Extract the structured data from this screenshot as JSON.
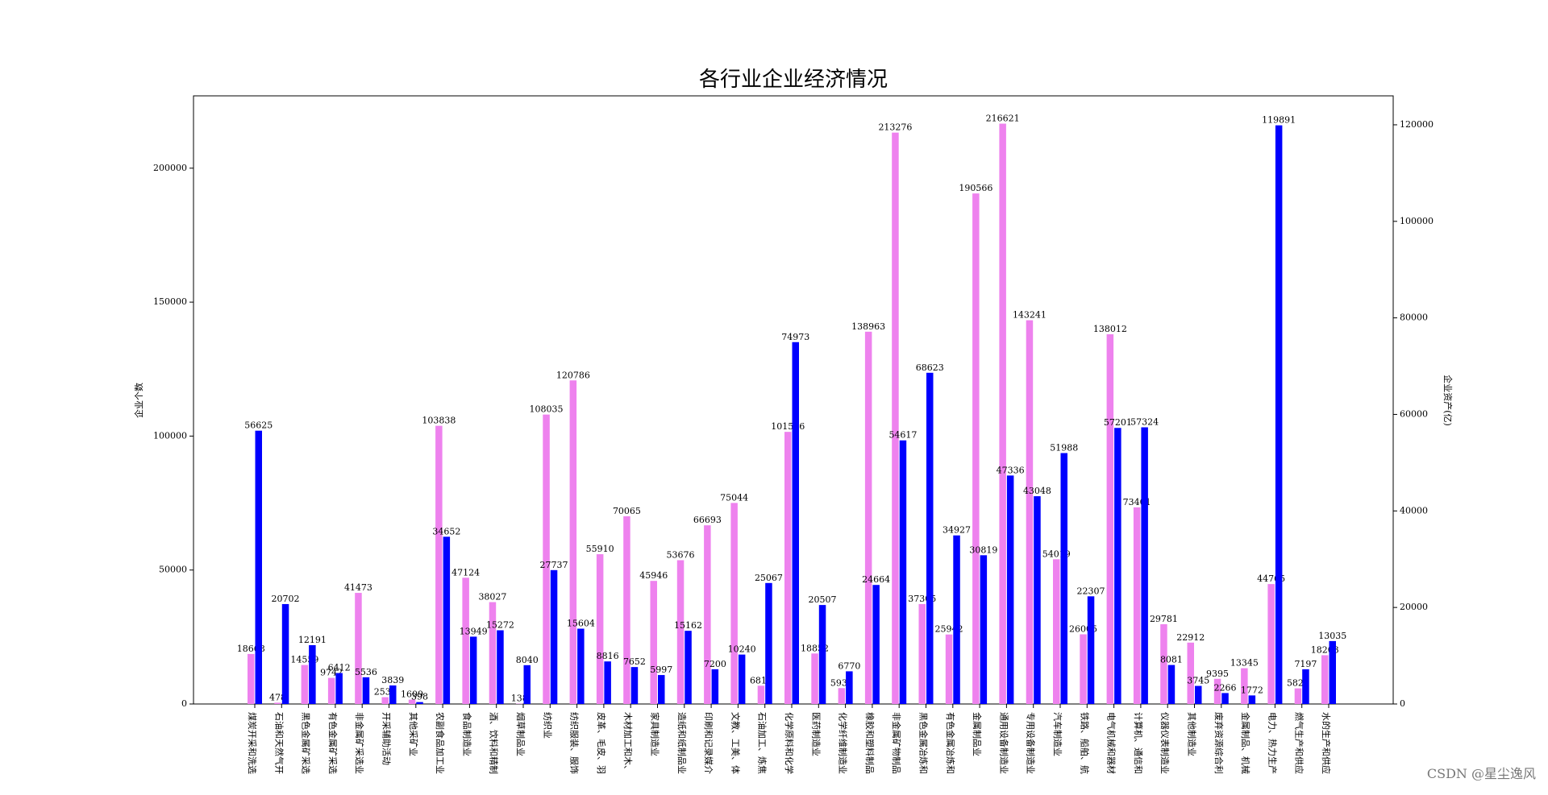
{
  "chart_data": {
    "type": "bar",
    "title": "各行业企业经济情况",
    "ylabel": "企业个数",
    "y2label": "企业资产(亿)",
    "watermark": "CSDN @星尘逸风",
    "categories": [
      "煤炭开采和洗选",
      "石油和天然气开",
      "黑色金属矿采选",
      "有色金属矿采选",
      "非金属矿采选业",
      "开采辅助活动",
      "其他采矿业",
      "农副食品加工业",
      "食品制造业",
      "酒、饮料和精制",
      "烟草制品业",
      "纺织业",
      "纺织服装、服饰",
      "皮革、毛皮、羽",
      "木材加工和木、",
      "家具制造业",
      "造纸和纸制品业",
      "印刷和记录媒介",
      "文教、工美、体",
      "石油加工、炼焦",
      "化学原料和化学",
      "医药制造业",
      "化学纤维制造业",
      "橡胶和塑料制品",
      "非金属矿物制品",
      "黑色金属冶炼和",
      "有色金属冶炼和",
      "金属制品业",
      "通用设备制造业",
      "专用设备制造业",
      "汽车制造业",
      "铁路、船舶、航",
      "电气机械和器材",
      "计算机、通信和",
      "仪器仪表制造业",
      "其他制造业",
      "废弃资源综合利",
      "金属制品、机械",
      "电力、热力生产",
      "燃气生产和供应",
      "水的生产和供应"
    ],
    "series": [
      {
        "color": "#ee82ee",
        "axis": "y",
        "values": [
          18668,
          478,
          14559,
          9742,
          41473,
          2534,
          1609,
          103838,
          47124,
          38027,
          138,
          108035,
          120786,
          55910,
          70065,
          45946,
          53676,
          66693,
          75044,
          6815,
          101576,
          18852,
          5935,
          138963,
          213276,
          37305,
          25942,
          190566,
          216621,
          143241,
          54019,
          26005,
          138012,
          73401,
          29781,
          22912,
          9395,
          13345,
          44765,
          5825,
          18203
        ]
      },
      {
        "color": "#0000ff",
        "axis": "y2",
        "values": [
          56625,
          20702,
          12191,
          6412,
          5536,
          3839,
          398,
          34652,
          13949,
          15272,
          8040,
          27737,
          15604,
          8816,
          7652,
          5997,
          15162,
          7200,
          10240,
          25067,
          74973,
          20507,
          6770,
          24664,
          54617,
          68623,
          34927,
          30819,
          47336,
          43048,
          51988,
          22307,
          57201,
          57324,
          8081,
          3745,
          2266,
          1772,
          119891,
          7197,
          13035
        ]
      }
    ],
    "ylim": [
      0,
      227000
    ],
    "yticks": [
      0,
      50000,
      100000,
      150000,
      200000
    ],
    "y2lim": [
      0,
      126000
    ],
    "y2ticks": [
      0,
      20000,
      40000,
      60000,
      80000,
      100000,
      120000
    ]
  }
}
